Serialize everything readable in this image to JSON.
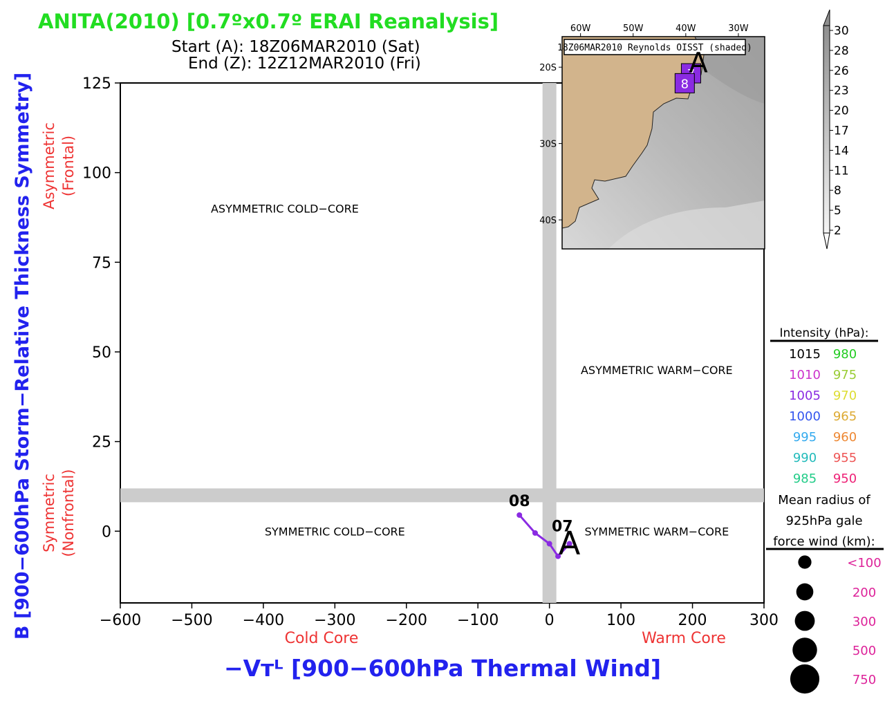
{
  "header": {
    "title": "ANITA(2010) [0.7ºx0.7º ERAI Reanalysis]",
    "start_line": "Start (A): 18Z06MAR2010 (Sat)",
    "end_line": "End (Z): 12Z12MAR2010 (Fri)"
  },
  "colors": {
    "title": "#22dd22",
    "axis_title": "#2222ee",
    "quadrant_label_red": "#ee3333",
    "track": "#8a2be2",
    "divider": "#cccccc",
    "land": "#d2b48c"
  },
  "chart_data": {
    "type": "line",
    "xlim": [
      -600,
      300
    ],
    "ylim": [
      -20,
      125
    ],
    "xticks": [
      -600,
      -500,
      -400,
      -300,
      -200,
      -100,
      0,
      100,
      200,
      300
    ],
    "yticks": [
      0,
      25,
      50,
      75,
      100,
      125
    ],
    "xticklabels": [
      "−600",
      "−500",
      "−400",
      "−300",
      "−200",
      "−100",
      "0",
      "100",
      "200",
      "300"
    ],
    "yticklabels": [
      "0",
      "25",
      "50",
      "75",
      "100",
      "125"
    ],
    "xlabel": "−Vᴛᴸ [900−600hPa Thermal Wind]",
    "ylabel": "B [900−600hPa Storm−Relative Thickness Symmetry]",
    "x_sub_left": "Cold Core",
    "x_sub_right": "Warm Core",
    "y_sub_top_line1": "Asymmetric",
    "y_sub_top_line2": "(Frontal)",
    "y_sub_bottom_line1": "Symmetric",
    "y_sub_bottom_line2": "(Nonfrontal)",
    "dividers": {
      "x": 0,
      "y": 10
    },
    "quadrants": {
      "asym_cold": "ASYMMETRIC COLD−CORE",
      "asym_warm": "ASYMMETRIC WARM−CORE",
      "sym_cold": "SYMMETRIC COLD−CORE",
      "sym_warm": "SYMMETRIC WARM−CORE"
    },
    "quadrant_positions": {
      "asym_cold": [
        -370,
        90
      ],
      "asym_warm": [
        150,
        45
      ],
      "sym_cold": [
        -300,
        0
      ],
      "sym_warm": [
        150,
        0
      ]
    },
    "track": {
      "name": "ANITA",
      "points": [
        {
          "x": 28,
          "y": -3.5
        },
        {
          "x": 12,
          "y": -7
        },
        {
          "x": 0,
          "y": -3.5
        },
        {
          "x": -20,
          "y": -0.5
        },
        {
          "x": -42,
          "y": 4.5
        }
      ],
      "start_marker": "A",
      "day_labels": [
        {
          "text": "07",
          "x": 18,
          "y": 0
        },
        {
          "text": "08",
          "x": -42,
          "y": 7
        }
      ]
    },
    "inset": {
      "title": "18Z06MAR2010 Reynolds OISST (shaded)",
      "lon_labels": [
        "60W",
        "50W",
        "40W",
        "30W"
      ],
      "lon_values": [
        -60,
        -50,
        -40,
        -30
      ],
      "lat_labels": [
        "20S",
        "30S",
        "40S"
      ],
      "lat_values": [
        -20,
        -30,
        -40
      ],
      "lon_range": [
        -63.5,
        -25
      ],
      "lat_range": [
        -43.8,
        -16
      ],
      "colorbar_labels": [
        "30",
        "28",
        "26",
        "23",
        "20",
        "17",
        "14",
        "11",
        "8",
        "5",
        "2"
      ],
      "markers": [
        {
          "text": "7",
          "lon": -39,
          "lat": -20.8
        },
        {
          "text": "8",
          "lon": -40.2,
          "lat": -22.1
        }
      ],
      "track_points": [
        {
          "lon": -38.4,
          "lat": -19.4
        },
        {
          "lon": -39,
          "lat": -20.8
        },
        {
          "lon": -40.2,
          "lat": -22.1
        }
      ],
      "start_marker": "A"
    },
    "intensity_legend": {
      "title": "Intensity (hPa):",
      "items": [
        {
          "value": "1015",
          "color": "#000000"
        },
        {
          "value": "980",
          "color": "#22cc22"
        },
        {
          "value": "1010",
          "color": "#cc33cc"
        },
        {
          "value": "975",
          "color": "#99cc33"
        },
        {
          "value": "1005",
          "color": "#8a2be2"
        },
        {
          "value": "970",
          "color": "#dddd33"
        },
        {
          "value": "1000",
          "color": "#3355ee"
        },
        {
          "value": "965",
          "color": "#ddaa33"
        },
        {
          "value": "995",
          "color": "#33aaee"
        },
        {
          "value": "960",
          "color": "#ee8833"
        },
        {
          "value": "990",
          "color": "#22bbbb"
        },
        {
          "value": "955",
          "color": "#ee5555"
        },
        {
          "value": "985",
          "color": "#22cc88"
        },
        {
          "value": "950",
          "color": "#ee2277"
        }
      ]
    },
    "radius_legend": {
      "title_lines": [
        "Mean radius of",
        "925hPa gale",
        "force wind (km):"
      ],
      "items": [
        {
          "label": "<100",
          "km": 100
        },
        {
          "label": "200",
          "km": 200
        },
        {
          "label": "300",
          "km": 300
        },
        {
          "label": "500",
          "km": 500
        },
        {
          "label": "750",
          "km": 750
        }
      ],
      "label_color": "#dd2299"
    }
  }
}
